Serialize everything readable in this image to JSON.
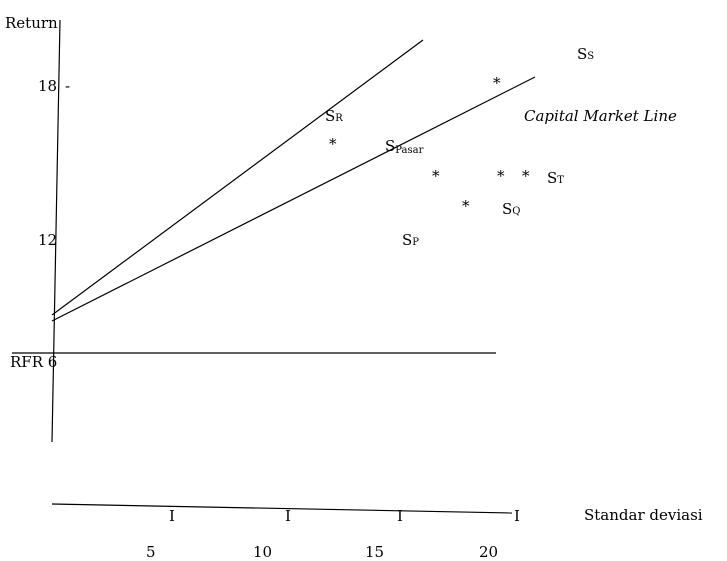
{
  "axes": {
    "y_title": "Return",
    "x_title": "Standar deviasi",
    "y_ticks": [
      {
        "label": "18",
        "mark": "-"
      },
      {
        "label": "12",
        "mark": ""
      }
    ],
    "rfr_label": "RFR 6",
    "x_tick_mark": "I",
    "x_ticks": [
      "5",
      "10",
      "15",
      "20"
    ]
  },
  "lines": {
    "cml_label": "Capital Market Line"
  },
  "portfolios": [
    {
      "letter": "S",
      "sub": "S"
    },
    {
      "letter": "S",
      "sub": "R"
    },
    {
      "letter": "S",
      "sub": "Pasar"
    },
    {
      "letter": "S",
      "sub": "T"
    },
    {
      "letter": "S",
      "sub": "Q"
    },
    {
      "letter": "S",
      "sub": "P"
    }
  ],
  "marker": "*"
}
